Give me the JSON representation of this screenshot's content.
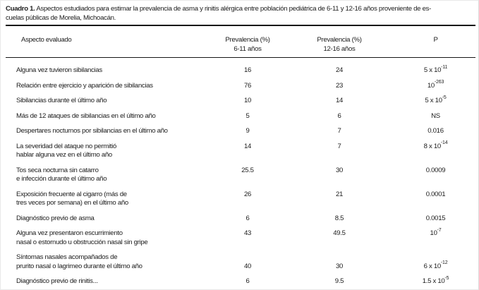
{
  "caption": {
    "label": "Cuadro 1.",
    "line1_rest": " Aspectos estudiados para estimar la prevalencia de asma y rinitis alérgica entre población pediátrica de 6-11 y 12-16 años proveniente de es-",
    "line2": "cuelas públicas de Morelia, Michoacán."
  },
  "table": {
    "headers": {
      "aspect": "Aspecto evaluado",
      "prev1_line1": "Prevalencia (%)",
      "prev1_line2": "6-11 años",
      "prev2_line1": "Prevalencia (%)",
      "prev2_line2": "12-16 años",
      "p": "P"
    },
    "rows": [
      {
        "label_lines": [
          "Alguna vez tuvieron sibilancias"
        ],
        "v1": "16",
        "v2": "24",
        "p_base": "5 x 10",
        "p_exp": "-11"
      },
      {
        "label_lines": [
          "Relación entre ejercicio y aparición de sibilancias"
        ],
        "v1": "76",
        "v2": "23",
        "p_base": "10",
        "p_exp": "-263"
      },
      {
        "label_lines": [
          "Sibilancias durante el último año"
        ],
        "v1": "10",
        "v2": "14",
        "p_base": "5 x 10",
        "p_exp": "-5"
      },
      {
        "label_lines": [
          "Más de 12 ataques de sibilancias en el último año"
        ],
        "v1": "5",
        "v2": "6",
        "p_base": "NS",
        "p_exp": ""
      },
      {
        "label_lines": [
          "Despertares nocturnos por sibilancias en el último año"
        ],
        "v1": "9",
        "v2": "7",
        "p_base": "0.016",
        "p_exp": ""
      },
      {
        "label_lines": [
          "La severidad del ataque no permitió",
          "hablar alguna vez en el último año"
        ],
        "v1": "14",
        "v2": "7",
        "p_base": "8 x 10",
        "p_exp": "-14"
      },
      {
        "label_lines": [
          "Tos seca nocturna sin catarro",
          "e infección durante el último año"
        ],
        "v1": "25.5",
        "v2": "30",
        "p_base": "0.0009",
        "p_exp": ""
      },
      {
        "label_lines": [
          "Exposición frecuente al cigarro (más de",
          "tres veces por semana) en el último año"
        ],
        "v1": "26",
        "v2": "21",
        "p_base": "0.0001",
        "p_exp": ""
      },
      {
        "label_lines": [
          "Diagnóstico previo de asma"
        ],
        "v1": "6",
        "v2": "8.5",
        "p_base": "0.0015",
        "p_exp": ""
      },
      {
        "label_lines": [
          "Alguna vez presentaron escurrimiento",
          "nasal o estornudo u obstrucción nasal sin gripe"
        ],
        "v1": "43",
        "v2": "49.5",
        "p_base": "10",
        "p_exp": "-7"
      },
      {
        "label_lines": [
          "Síntomas nasales acompañados de",
          "prurito nasal o lagrimeo durante el último año"
        ],
        "v1": "40",
        "v2": "30",
        "p_base": "6 x 10",
        "p_exp": "-12",
        "valign": "end"
      },
      {
        "label_lines": [
          "Diagnóstico previo de rinitis..."
        ],
        "v1": "6",
        "v2": "9.5",
        "p_base": "1.5 x 10",
        "p_exp": "-5"
      }
    ]
  }
}
